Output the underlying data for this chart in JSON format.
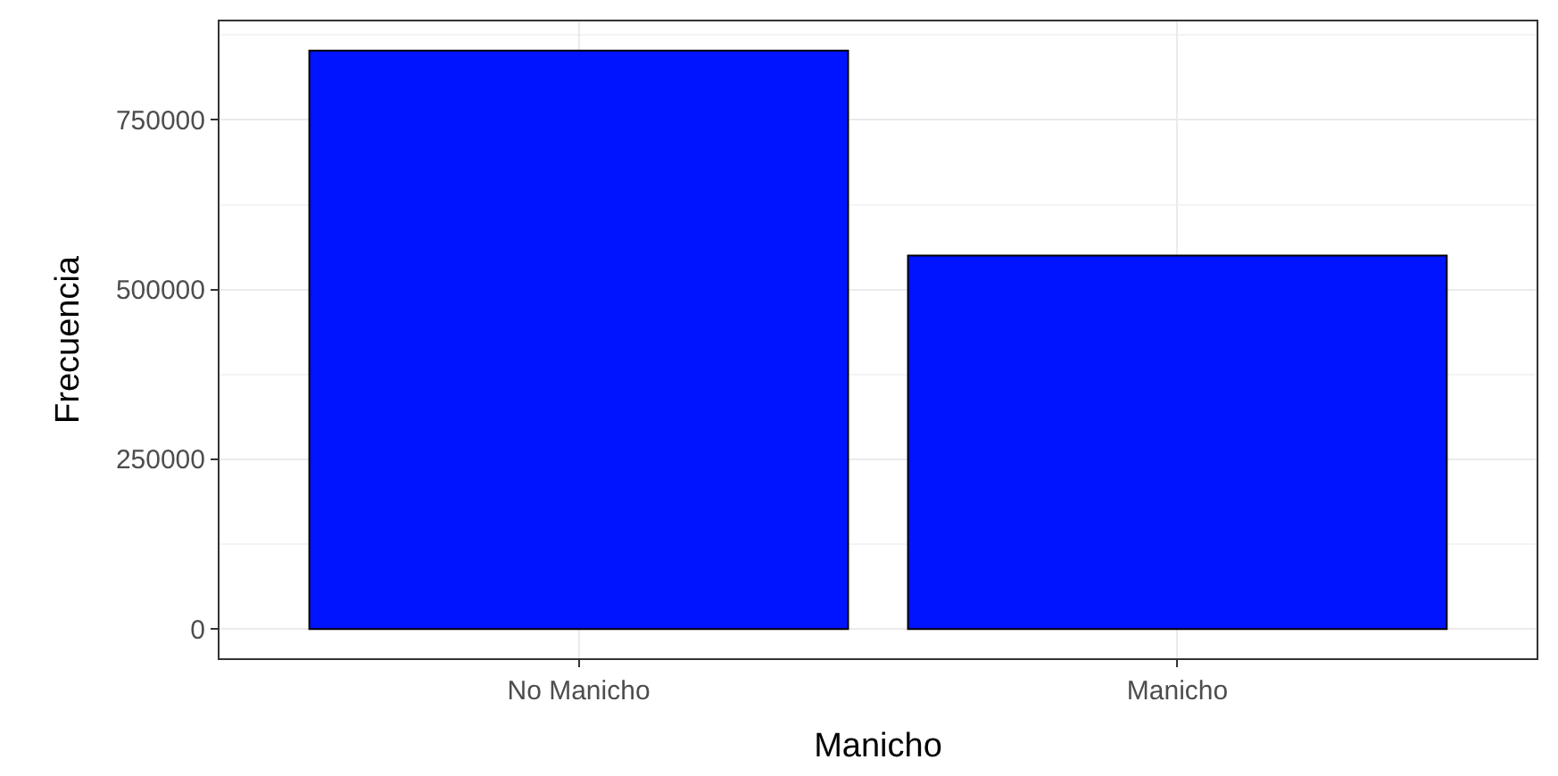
{
  "chart_data": {
    "type": "bar",
    "xlabel": "Manicho",
    "ylabel": "Frecuencia",
    "categories": [
      "No Manicho",
      "Manicho"
    ],
    "series": [
      {
        "color": "#0014ff",
        "values": [
          852000,
          550000
        ]
      }
    ],
    "ylim": [
      -43000,
      895000
    ],
    "yticks": [
      0,
      250000,
      500000,
      750000
    ],
    "grid": true,
    "legend": false
  }
}
